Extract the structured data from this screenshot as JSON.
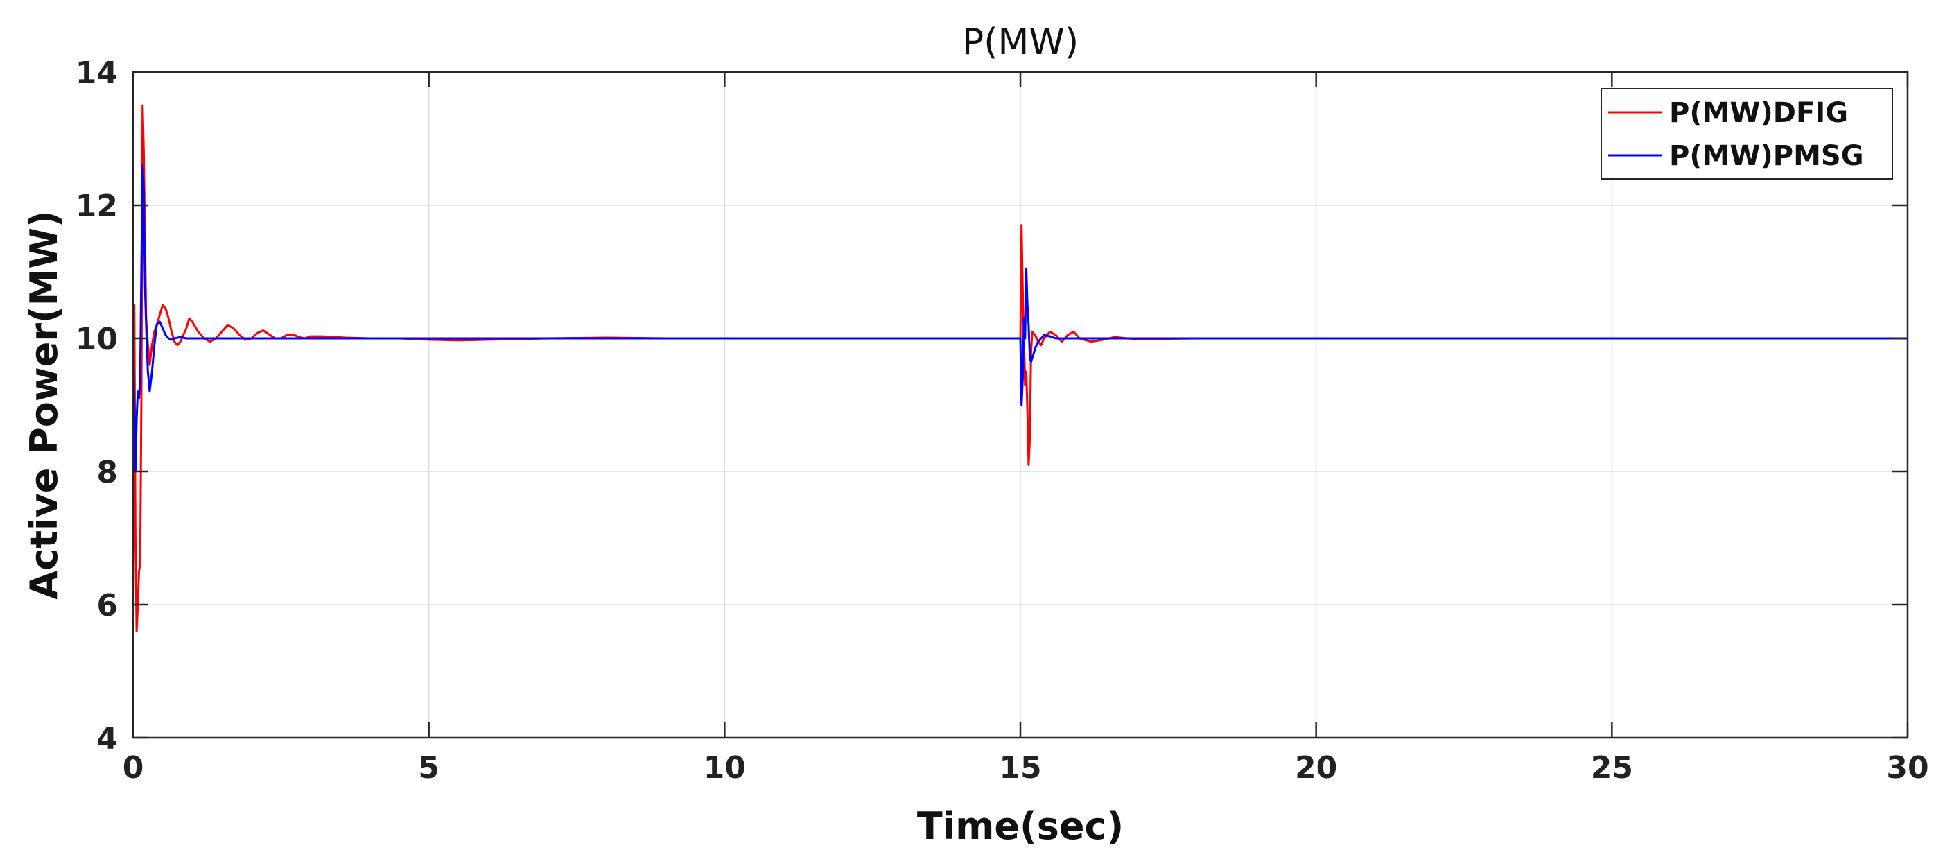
{
  "chart_data": {
    "type": "line",
    "title": "P(MW)",
    "xlabel": "Time(sec)",
    "ylabel": "Active Power(MW)",
    "xlim": [
      0,
      30
    ],
    "ylim": [
      4,
      14
    ],
    "xticks": [
      0,
      5,
      10,
      15,
      20,
      25,
      30
    ],
    "yticks": [
      4,
      6,
      8,
      10,
      12,
      14
    ],
    "xtick_labels": [
      "0",
      "5",
      "10",
      "15",
      "20",
      "25",
      "30"
    ],
    "ytick_labels": [
      "4",
      "6",
      "8",
      "10",
      "12",
      "14"
    ],
    "grid": true,
    "legend_position": "top-right",
    "series": [
      {
        "name": "P(MW)DFIG",
        "color": "#ff0000",
        "x": [
          0.0,
          0.02,
          0.04,
          0.06,
          0.08,
          0.1,
          0.12,
          0.14,
          0.16,
          0.18,
          0.2,
          0.22,
          0.25,
          0.28,
          0.32,
          0.36,
          0.4,
          0.45,
          0.5,
          0.55,
          0.6,
          0.65,
          0.7,
          0.75,
          0.8,
          0.85,
          0.9,
          0.95,
          1.0,
          1.1,
          1.2,
          1.3,
          1.4,
          1.5,
          1.6,
          1.7,
          1.8,
          1.9,
          2.0,
          2.1,
          2.2,
          2.3,
          2.4,
          2.5,
          2.6,
          2.7,
          2.8,
          2.9,
          3.0,
          3.2,
          3.4,
          3.6,
          4.0,
          4.5,
          5.0,
          5.5,
          6.0,
          6.5,
          7.0,
          8.0,
          9.0,
          10.0,
          11.0,
          12.0,
          13.0,
          14.0,
          14.9,
          15.0,
          15.02,
          15.04,
          15.06,
          15.08,
          15.1,
          15.12,
          15.14,
          15.16,
          15.18,
          15.2,
          15.25,
          15.3,
          15.35,
          15.4,
          15.5,
          15.6,
          15.7,
          15.8,
          15.9,
          16.0,
          16.2,
          16.4,
          16.6,
          16.8,
          17.0,
          18.0,
          19.0,
          20.0,
          21.0,
          22.0,
          23.0,
          24.0,
          25.0,
          26.0,
          27.0,
          28.0,
          29.0,
          30.0
        ],
        "y": [
          10.0,
          10.5,
          7.0,
          5.6,
          6.0,
          6.5,
          6.6,
          9.0,
          13.5,
          12.8,
          11.5,
          10.3,
          9.9,
          9.6,
          9.9,
          10.1,
          10.2,
          10.35,
          10.5,
          10.45,
          10.3,
          10.1,
          9.95,
          9.9,
          9.95,
          10.05,
          10.15,
          10.3,
          10.25,
          10.1,
          10.0,
          9.95,
          10.0,
          10.1,
          10.2,
          10.15,
          10.05,
          9.98,
          10.0,
          10.08,
          10.12,
          10.06,
          10.0,
          10.0,
          10.05,
          10.06,
          10.02,
          10.0,
          10.03,
          10.03,
          10.02,
          10.01,
          10.0,
          10.0,
          9.98,
          9.97,
          9.98,
          9.99,
          10.0,
          10.01,
          10.0,
          10.0,
          10.0,
          10.0,
          10.0,
          10.0,
          10.0,
          10.0,
          11.7,
          10.7,
          10.0,
          9.3,
          9.5,
          8.9,
          8.1,
          8.5,
          9.8,
          10.1,
          10.05,
          9.95,
          9.9,
          10.0,
          10.1,
          10.05,
          9.95,
          10.05,
          10.1,
          10.0,
          9.95,
          9.98,
          10.02,
          10.0,
          9.99,
          10.0,
          10.0,
          10.0,
          10.0,
          10.0,
          10.0,
          10.0,
          10.0,
          10.0,
          10.0,
          10.0,
          10.0,
          10.0
        ]
      },
      {
        "name": "P(MW)PMSG",
        "color": "#0000ff",
        "x": [
          0.0,
          0.02,
          0.04,
          0.06,
          0.08,
          0.1,
          0.12,
          0.14,
          0.16,
          0.18,
          0.2,
          0.22,
          0.25,
          0.28,
          0.32,
          0.36,
          0.4,
          0.45,
          0.5,
          0.55,
          0.6,
          0.65,
          0.7,
          0.8,
          0.9,
          1.0,
          1.2,
          1.5,
          2.0,
          3.0,
          4.0,
          5.0,
          6.0,
          8.0,
          10.0,
          12.0,
          14.0,
          14.9,
          15.0,
          15.02,
          15.04,
          15.06,
          15.08,
          15.1,
          15.12,
          15.14,
          15.16,
          15.18,
          15.2,
          15.25,
          15.3,
          15.35,
          15.4,
          15.5,
          15.6,
          15.7,
          15.8,
          16.0,
          16.5,
          17.0,
          18.0,
          20.0,
          22.0,
          24.0,
          26.0,
          28.0,
          30.0
        ],
        "y": [
          10.0,
          9.0,
          8.0,
          8.8,
          9.2,
          9.1,
          9.4,
          11.0,
          12.6,
          12.2,
          10.8,
          10.2,
          9.5,
          9.2,
          9.5,
          9.9,
          10.2,
          10.25,
          10.15,
          10.05,
          10.0,
          9.98,
          10.0,
          10.02,
          10.0,
          10.0,
          10.0,
          10.0,
          10.0,
          10.0,
          10.0,
          10.0,
          10.0,
          10.0,
          10.0,
          10.0,
          10.0,
          10.0,
          10.0,
          9.0,
          9.4,
          10.3,
          10.0,
          11.05,
          10.5,
          10.2,
          9.7,
          9.65,
          9.7,
          9.85,
          9.95,
          10.0,
          10.05,
          10.03,
          10.0,
          10.0,
          10.0,
          10.0,
          10.0,
          10.0,
          10.0,
          10.0,
          10.0,
          10.0,
          10.0,
          10.0,
          10.0
        ]
      }
    ]
  }
}
